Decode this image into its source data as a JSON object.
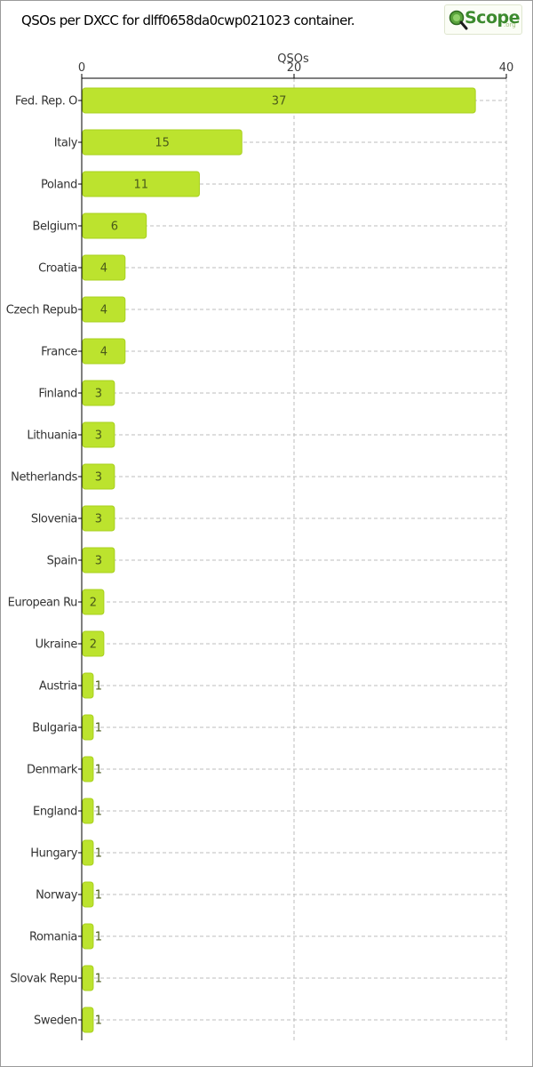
{
  "header": {
    "title": "QSOs per DXCC for dlff0658da0cwp021023 container.",
    "logo_text": "Scope",
    "logo_sub": ".org"
  },
  "colors": {
    "bar": "#bce32e",
    "bar_stroke": "#a9d01f",
    "grid": "#bdbdbd",
    "label_text": "#3c3c3c"
  },
  "icons": {
    "logo": "magnifier-icon"
  },
  "chart_data": {
    "type": "bar",
    "orientation": "horizontal",
    "xlabel": "QSOs",
    "xlim": [
      0,
      40
    ],
    "ticks": [
      0,
      20,
      40
    ],
    "grid": true,
    "categories": [
      "Fed. Rep. O",
      "Italy",
      "Poland",
      "Belgium",
      "Croatia",
      "Czech Repub",
      "France",
      "Finland",
      "Lithuania",
      "Netherlands",
      "Slovenia",
      "Spain",
      "European Ru",
      "Ukraine",
      "Austria",
      "Bulgaria",
      "Denmark",
      "England",
      "Hungary",
      "Norway",
      "Romania",
      "Slovak Repu",
      "Sweden"
    ],
    "values": [
      37,
      15,
      11,
      6,
      4,
      4,
      4,
      3,
      3,
      3,
      3,
      3,
      2,
      2,
      1,
      1,
      1,
      1,
      1,
      1,
      1,
      1,
      1
    ]
  }
}
